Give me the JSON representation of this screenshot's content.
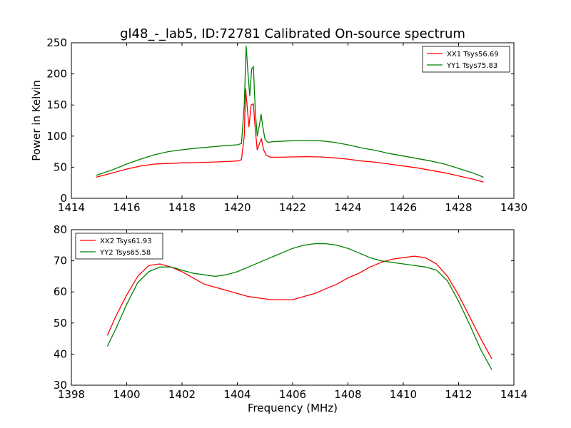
{
  "chart_data": [
    {
      "type": "line",
      "title": "gl48_-_lab5, ID:72781 Calibrated On-source spectrum",
      "xlabel": "",
      "ylabel": "Power in Kelvin",
      "xlim": [
        1414,
        1430
      ],
      "ylim": [
        0,
        250
      ],
      "xticks": [
        1414,
        1416,
        1418,
        1420,
        1422,
        1424,
        1426,
        1428,
        1430
      ],
      "yticks": [
        0,
        50,
        100,
        150,
        200,
        250
      ],
      "legend_position": "top-right",
      "series": [
        {
          "name": "XX1 Tsys56.69",
          "color": "#ff0000",
          "x": [
            1414.9,
            1415.5,
            1416.0,
            1416.5,
            1417.0,
            1417.5,
            1418.0,
            1418.5,
            1419.0,
            1419.5,
            1420.0,
            1420.15,
            1420.25,
            1420.3,
            1420.35,
            1420.42,
            1420.5,
            1420.58,
            1420.65,
            1420.72,
            1420.8,
            1420.87,
            1420.95,
            1421.05,
            1421.2,
            1421.5,
            1422.0,
            1422.5,
            1423.0,
            1423.5,
            1424.0,
            1424.5,
            1425.0,
            1425.5,
            1426.0,
            1426.5,
            1427.0,
            1427.5,
            1428.0,
            1428.5,
            1428.9
          ],
          "y": [
            34,
            41,
            47,
            52,
            55,
            56,
            57,
            57.5,
            58,
            59,
            60,
            62,
            100,
            176,
            150,
            115,
            150,
            152,
            110,
            78,
            88,
            96,
            78,
            69,
            66,
            66,
            66.5,
            67,
            66.5,
            65,
            63,
            60,
            58,
            55,
            52,
            49,
            45,
            41,
            36,
            31,
            26
          ]
        },
        {
          "name": "YY1 Tsys75.83",
          "color": "#008000",
          "x": [
            1414.9,
            1415.5,
            1416.0,
            1416.5,
            1417.0,
            1417.5,
            1418.0,
            1418.5,
            1419.0,
            1419.5,
            1420.0,
            1420.15,
            1420.25,
            1420.32,
            1420.38,
            1420.45,
            1420.52,
            1420.58,
            1420.65,
            1420.72,
            1420.8,
            1420.86,
            1420.92,
            1421.0,
            1421.1,
            1421.3,
            1421.5,
            1422.0,
            1422.5,
            1423.0,
            1423.5,
            1424.0,
            1424.5,
            1425.0,
            1425.5,
            1426.0,
            1426.5,
            1427.0,
            1427.5,
            1428.0,
            1428.5,
            1428.9
          ],
          "y": [
            37,
            46,
            55,
            63,
            70,
            75,
            78,
            80.5,
            82.5,
            84.5,
            86,
            88,
            150,
            245,
            205,
            165,
            208,
            212,
            140,
            100,
            118,
            135,
            115,
            95,
            90,
            91,
            91.5,
            92.5,
            93,
            92.5,
            90,
            86,
            81,
            77,
            72,
            68,
            64,
            60,
            55,
            48,
            41,
            34
          ]
        }
      ]
    },
    {
      "type": "line",
      "title": "",
      "xlabel": "Frequency (MHz)",
      "ylabel": "",
      "xlim": [
        1398,
        1414
      ],
      "ylim": [
        30,
        80
      ],
      "xticks": [
        1398,
        1400,
        1402,
        1404,
        1406,
        1408,
        1410,
        1412,
        1414
      ],
      "yticks": [
        30,
        40,
        50,
        60,
        70,
        80
      ],
      "legend_position": "top-left",
      "series": [
        {
          "name": "XX2 Tsys61.93",
          "color": "#ff0000",
          "x": [
            1399.3,
            1399.6,
            1400.0,
            1400.4,
            1400.8,
            1401.2,
            1401.6,
            1402.0,
            1402.4,
            1402.8,
            1403.2,
            1403.6,
            1404.0,
            1404.4,
            1404.8,
            1405.2,
            1405.6,
            1406.0,
            1406.4,
            1406.8,
            1407.2,
            1407.6,
            1408.0,
            1408.4,
            1408.8,
            1409.2,
            1409.6,
            1410.0,
            1410.4,
            1410.8,
            1411.2,
            1411.6,
            1412.0,
            1412.4,
            1412.8,
            1413.2
          ],
          "y": [
            46,
            52,
            59,
            65,
            68.5,
            69,
            68,
            66.5,
            64.5,
            62.5,
            61.5,
            60.5,
            59.5,
            58.5,
            58,
            57.5,
            57.5,
            57.5,
            58.5,
            59.5,
            61,
            62.5,
            64.5,
            66,
            68,
            69.5,
            70.5,
            71,
            71.5,
            71,
            69,
            65,
            59,
            52,
            45,
            38.5
          ]
        },
        {
          "name": "YY2 Tsys65.58",
          "color": "#008000",
          "x": [
            1399.3,
            1399.6,
            1400.0,
            1400.4,
            1400.8,
            1401.2,
            1401.6,
            1402.0,
            1402.4,
            1402.8,
            1403.2,
            1403.6,
            1404.0,
            1404.4,
            1404.8,
            1405.2,
            1405.6,
            1406.0,
            1406.4,
            1406.8,
            1407.2,
            1407.6,
            1408.0,
            1408.4,
            1408.8,
            1409.2,
            1409.6,
            1410.0,
            1410.4,
            1410.8,
            1411.2,
            1411.6,
            1412.0,
            1412.4,
            1412.8,
            1413.2
          ],
          "y": [
            42.5,
            48,
            56,
            63,
            66.5,
            68,
            68,
            67,
            66,
            65.5,
            65,
            65.5,
            66.5,
            68,
            69.5,
            71,
            72.5,
            74,
            75,
            75.5,
            75.5,
            75,
            74,
            72.5,
            71,
            70,
            69.5,
            69,
            68.5,
            68,
            67,
            63.5,
            57,
            49.5,
            41.5,
            35
          ]
        }
      ]
    }
  ]
}
